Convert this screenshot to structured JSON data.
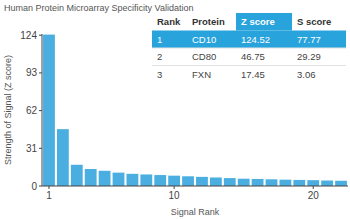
{
  "chart_data": {
    "type": "bar",
    "title": "Human Protein Microarray Specificity Validation",
    "xlabel": "Signal Rank",
    "ylabel": "Strength of Signal (Z score)",
    "x": [
      1,
      2,
      3,
      4,
      5,
      6,
      7,
      8,
      9,
      10,
      11,
      12,
      13,
      14,
      15,
      16,
      17,
      18,
      19,
      20,
      21,
      22
    ],
    "values": [
      124.52,
      46.75,
      17.45,
      14,
      12.5,
      11,
      10,
      9.5,
      9,
      8.5,
      8,
      7.5,
      7,
      6.5,
      6,
      5.8,
      5.5,
      5.2,
      5,
      4.8,
      4.5,
      4.3
    ],
    "color": "#4aaee0",
    "xlim": [
      0.5,
      22.5
    ],
    "xticks": [
      1,
      10,
      20
    ],
    "ylim": [
      0,
      125
    ],
    "yticks": [
      0,
      31,
      62,
      93,
      124
    ],
    "grid": false
  },
  "table": {
    "columns": [
      "Rank",
      "Protein",
      "Z score",
      "S score"
    ],
    "rows": [
      [
        1,
        "CD10",
        124.52,
        77.77
      ],
      [
        2,
        "CD80",
        46.75,
        29.29
      ],
      [
        3,
        "FXN",
        17.45,
        3.06
      ]
    ]
  }
}
